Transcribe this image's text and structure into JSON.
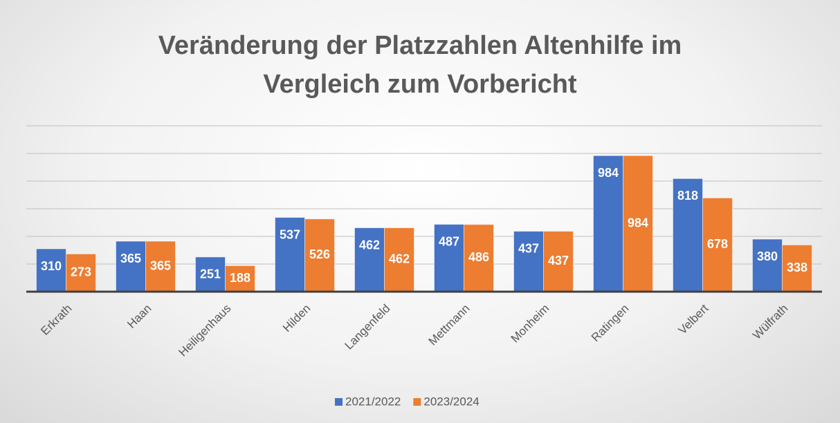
{
  "chart_data": {
    "type": "bar",
    "title": "Veränderung der Platzzahlen Altenhilfe im Vergleich zum Vorbericht",
    "categories": [
      "Erkrath",
      "Haan",
      "Heiligenhaus",
      "Hilden",
      "Langenfeld",
      "Mettmann",
      "Monheim",
      "Ratingen",
      "Velbert",
      "Wülfrath"
    ],
    "series": [
      {
        "name": "2021/2022",
        "color": "#4472c4",
        "values": [
          310,
          365,
          251,
          537,
          462,
          487,
          437,
          984,
          818,
          380
        ]
      },
      {
        "name": "2023/2024",
        "color": "#ed7d31",
        "values": [
          273,
          365,
          188,
          526,
          462,
          486,
          437,
          984,
          678,
          338
        ]
      }
    ],
    "ylim": [
      0,
      1200
    ],
    "yticks": [
      0,
      200,
      400,
      600,
      800,
      1000,
      1200
    ],
    "grid": true,
    "legend": "bottom"
  }
}
